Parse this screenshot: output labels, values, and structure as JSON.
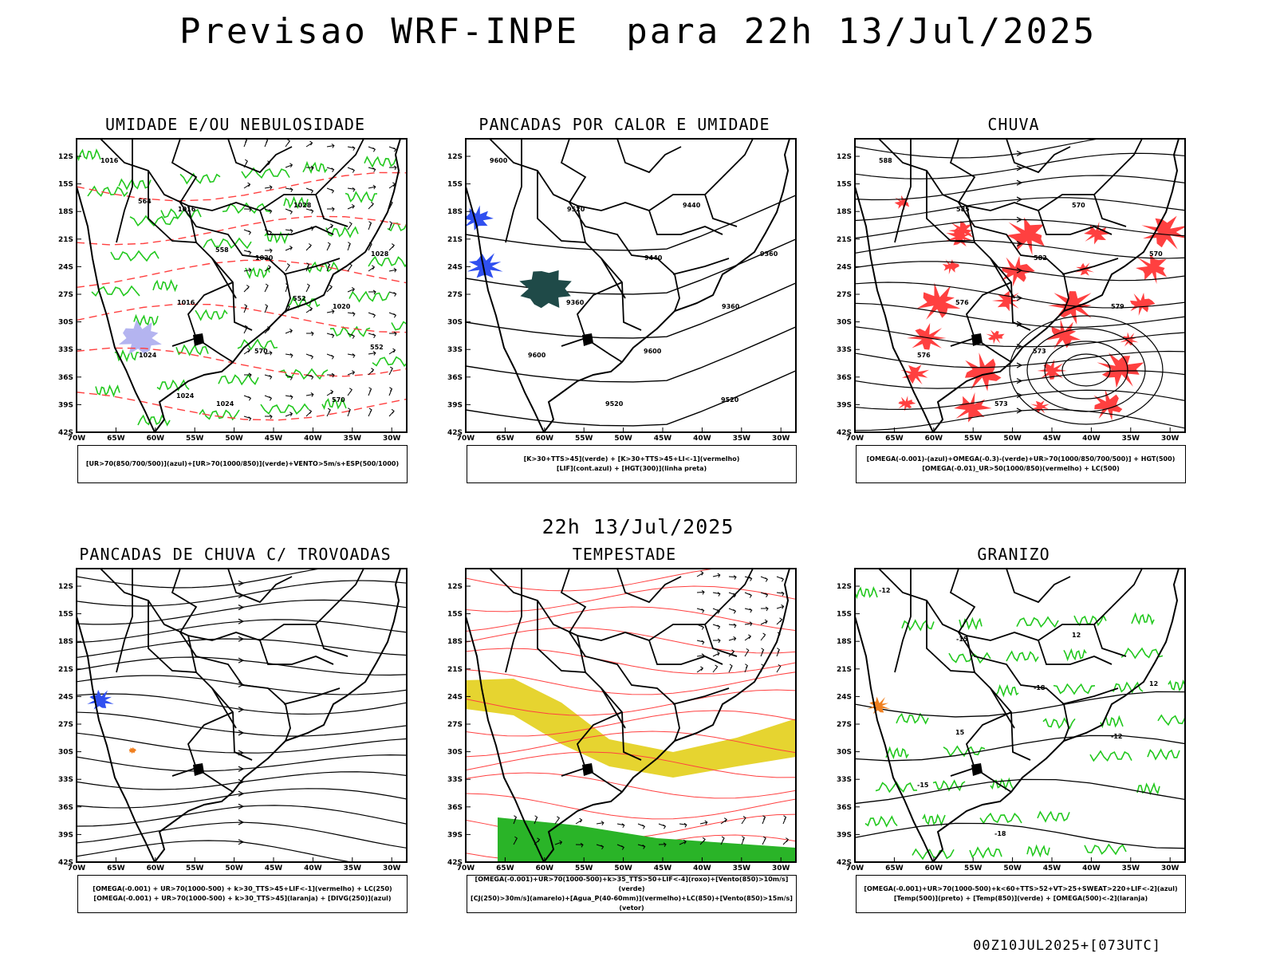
{
  "title": "Previsao WRF-INPE  para 22h 13/Jul/2025",
  "subtitle": "22h 13/Jul/2025",
  "footer": "00Z10JUL2025+[073UTC]",
  "axes": {
    "lat_labels": [
      "12S",
      "15S",
      "18S",
      "21S",
      "24S",
      "27S",
      "30S",
      "33S",
      "36S",
      "39S",
      "42S"
    ],
    "lon_labels": [
      "70W",
      "65W",
      "60W",
      "55W",
      "50W",
      "45W",
      "40W",
      "35W",
      "30W"
    ]
  },
  "panels": [
    {
      "id": "umidade",
      "title": "UMIDADE E/OU NEBULOSIDADE",
      "legend": [
        "[UR>70(850/700/500)](azul)+[UR>70(1000/850)](verde)+VENTO>5m/s+ESP(500/1000)"
      ],
      "contour_labels": [
        "1016",
        "1016",
        "1020",
        "1020",
        "1024",
        "1024",
        "1028",
        "1028",
        "1016",
        "570",
        "570",
        "564",
        "558",
        "552",
        "552",
        "1024"
      ]
    },
    {
      "id": "pancadas-calor",
      "title": "PANCADAS POR CALOR E UMIDADE",
      "legend": [
        "[K>30+TTS>45](verde) + [K>30+TTS>45+LI<-1](vermelho)",
        "[LIF](cont.azul) + [HGT(300)](linha preta)"
      ],
      "contour_labels": [
        "9600",
        "9520",
        "9440",
        "9360",
        "9600",
        "9520",
        "9440",
        "9360",
        "9360",
        "9600",
        "9520"
      ]
    },
    {
      "id": "chuva",
      "title": "CHUVA",
      "legend": [
        "[OMEGA(-0.001)-(azul)+OMEGA(-0.3)-(verde)+UR>70(1000/850/700/500)] + HGT(500)",
        "[OMEGA(-0.01)_UR>50(1000/850)(vermelho) + LC(500)"
      ],
      "contour_labels": [
        "588",
        "585",
        "582",
        "579",
        "576",
        "573",
        "570",
        "570",
        "576",
        "573"
      ]
    },
    {
      "id": "pancadas-trovoadas",
      "title": "PANCADAS DE CHUVA C/ TROVOADAS",
      "legend": [
        "[OMEGA(-0.001) + UR>70(1000-500) + k>30_TTS>45+LIF<-1](vermelho) + LC(250)",
        "[OMEGA(-0.001) + UR>70(1000-500) + k>30_TTS>45](laranja) + [DIVG(250)](azul)"
      ],
      "contour_labels": []
    },
    {
      "id": "tempestade",
      "title": "TEMPESTADE",
      "legend": [
        "[OMEGA(-0.001)+UR>70(1000-500)+k>35_TTS>50+LIF<-4](roxo)+[Vento(850)>10m/s](verde)",
        "[CJ(250)>30m/s](amarelo)+[Agua_P(40-60mm)](vermelho)+LC(850)+[Vento(850)>15m/s](vetor)"
      ],
      "contour_labels": []
    },
    {
      "id": "granizo",
      "title": "GRANIZO",
      "legend": [
        "[OMEGA(-0.001)+UR>70(1000-500)+k<60+TTS>52+VT>25+SWEAT>220+LIF<-2](azul)",
        "[Temp(500)](preto) + [Temp(850)](verde) + [OMEGA(500)<-2](laranja)"
      ],
      "contour_labels": [
        "-12",
        "-15",
        "-18",
        "-12",
        "-15",
        "-18",
        "12",
        "12",
        "15"
      ]
    }
  ],
  "colors": {
    "coast": "#000000",
    "humidity_green": "#22c81e",
    "humidity_blue": "#b4b4f0",
    "rain_red": "#ff4040",
    "lif_blue": "#3050f0",
    "heat_teal": "#1f4a48",
    "jet_yellow": "#e6d430",
    "orange": "#f08020",
    "wind_green": "#2ab428"
  }
}
